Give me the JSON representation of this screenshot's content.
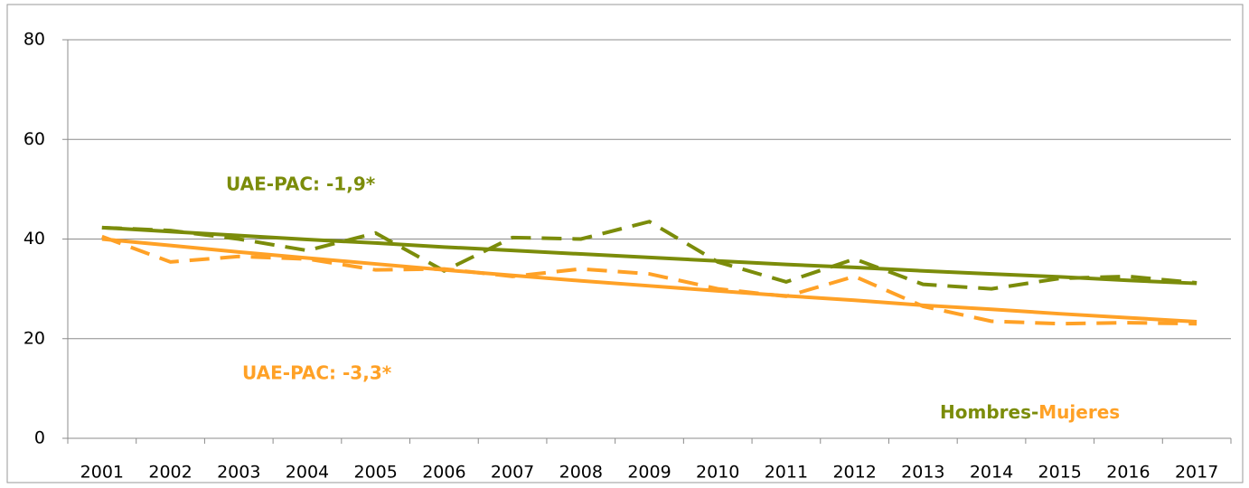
{
  "chart_data": {
    "type": "line",
    "categories": [
      "2001",
      "2002",
      "2003",
      "2004",
      "2005",
      "2006",
      "2007",
      "2008",
      "2009",
      "2010",
      "2011",
      "2012",
      "2013",
      "2014",
      "2015",
      "2016",
      "2017"
    ],
    "series": [
      {
        "name": "Hombres",
        "color": "#7b8c0a",
        "dashed": true,
        "values": [
          42.3,
          41.7,
          40.0,
          37.7,
          41.2,
          33.6,
          40.3,
          40.0,
          43.5,
          35.4,
          31.4,
          36.0,
          30.9,
          30.0,
          32.1,
          32.5,
          31.2
        ]
      },
      {
        "color": "#7b8c0a",
        "dashed": false,
        "values": [
          42.3,
          41.5,
          40.7,
          39.9,
          39.2,
          38.4,
          37.7,
          37.0,
          36.3,
          35.6,
          34.9,
          34.3,
          33.6,
          33.0,
          32.4,
          31.7,
          31.1
        ]
      },
      {
        "name": "Mujeres",
        "color": "#ffa126",
        "dashed": true,
        "values": [
          40.5,
          35.4,
          36.5,
          36.0,
          33.8,
          34.0,
          32.5,
          34.0,
          33.0,
          30.0,
          28.5,
          32.5,
          26.5,
          23.5,
          23.0,
          23.2,
          23.0
        ]
      },
      {
        "color": "#ffa126",
        "dashed": false,
        "values": [
          40.0,
          38.7,
          37.4,
          36.2,
          35.0,
          33.8,
          32.7,
          31.6,
          30.6,
          29.6,
          28.6,
          27.7,
          26.7,
          25.9,
          25.0,
          24.2,
          23.4
        ]
      }
    ],
    "annotations": [
      {
        "text": "UAE-PAC: -1,9*",
        "color": "#7b8c0a"
      },
      {
        "text": "UAE-PAC: -3,3*",
        "color": "#ffa126"
      }
    ],
    "legend_separator": "-",
    "ylim": [
      0,
      80
    ],
    "yticks": [
      0,
      20,
      40,
      60,
      80
    ],
    "grid": true
  }
}
